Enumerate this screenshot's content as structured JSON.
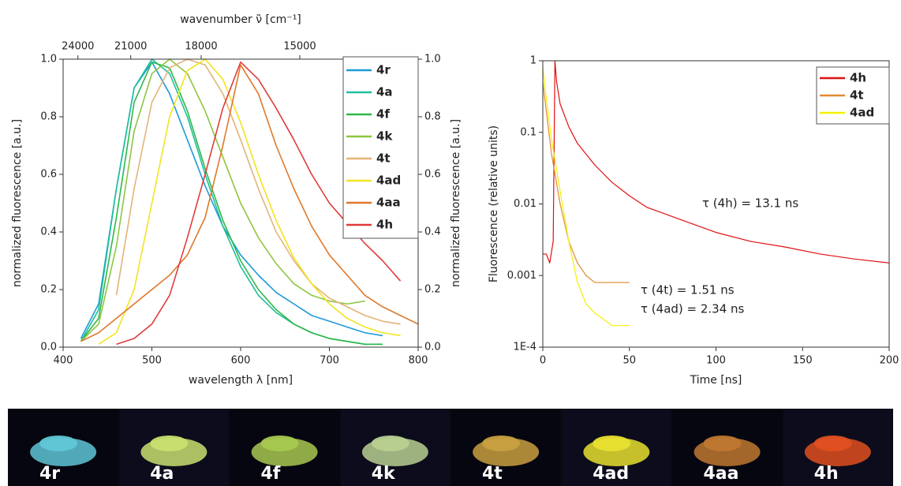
{
  "chart_data": [
    {
      "type": "line",
      "xlabel": "wavelength λ [nm]",
      "ylabel": "normalized fluorescence [a.u.]",
      "y2label": "normalized fluorescence [a.u.]",
      "x2label": "wavenumber ν̃ [cm⁻¹]",
      "xlim": [
        400,
        800
      ],
      "xticks": [
        400,
        500,
        600,
        700,
        800
      ],
      "ylim": [
        0,
        1
      ],
      "yticks": [
        {
          "value": 0,
          "label": "0.0"
        },
        {
          "value": 0.2,
          "label": "0.2"
        },
        {
          "value": 0.4,
          "label": "0.4"
        },
        {
          "value": 0.6,
          "label": "0.6"
        },
        {
          "value": 0.8,
          "label": "0.8"
        },
        {
          "value": 1,
          "label": "1.0"
        }
      ],
      "y2ticks": [
        {
          "value": 0,
          "label": "0.0"
        },
        {
          "value": 0.2,
          "label": "0.2"
        },
        {
          "value": 0.4,
          "label": "0.4"
        },
        {
          "value": 0.6,
          "label": "0.6"
        },
        {
          "value": 0.8,
          "label": "0.8"
        },
        {
          "value": 1,
          "label": "1.0"
        }
      ],
      "x2ticks": [
        24000,
        21000,
        18000,
        15000
      ],
      "legend": "upper right",
      "x": [
        400,
        420,
        440,
        460,
        480,
        500,
        520,
        540,
        560,
        580,
        600,
        620,
        640,
        660,
        680,
        700,
        720,
        740,
        760,
        780,
        800
      ],
      "series": [
        {
          "name": "4r",
          "color": "#1e9ad8",
          "values": [
            null,
            0.03,
            0.15,
            0.55,
            0.9,
            0.99,
            0.88,
            0.72,
            0.56,
            0.42,
            0.32,
            0.25,
            0.19,
            0.15,
            0.11,
            0.09,
            0.07,
            0.05,
            0.04,
            null,
            null
          ]
        },
        {
          "name": "4a",
          "color": "#1fbf9c",
          "values": [
            null,
            0.02,
            0.13,
            0.55,
            0.9,
            1.0,
            0.95,
            0.8,
            0.6,
            0.42,
            0.28,
            0.18,
            0.12,
            0.08,
            0.05,
            0.03,
            0.02,
            0.01,
            0.01,
            null,
            null
          ]
        },
        {
          "name": "4f",
          "color": "#2db84a",
          "values": [
            null,
            0.02,
            0.1,
            0.45,
            0.85,
            0.99,
            0.97,
            0.82,
            0.62,
            0.44,
            0.3,
            0.2,
            0.13,
            0.08,
            0.05,
            0.03,
            0.02,
            0.01,
            0.01,
            null,
            null
          ]
        },
        {
          "name": "4k",
          "color": "#8dc63f",
          "values": [
            null,
            0.02,
            0.08,
            0.35,
            0.75,
            0.95,
            1.0,
            0.95,
            0.82,
            0.66,
            0.5,
            0.38,
            0.29,
            0.22,
            0.18,
            0.16,
            0.15,
            0.16,
            null,
            null,
            null
          ]
        },
        {
          "name": "4t",
          "color": "#e2b477",
          "values": [
            null,
            null,
            null,
            0.18,
            0.55,
            0.85,
            0.97,
            1.0,
            0.98,
            0.88,
            0.72,
            0.55,
            0.4,
            0.3,
            0.22,
            0.17,
            0.14,
            0.11,
            0.09,
            0.08,
            null
          ]
        },
        {
          "name": "4ad",
          "color": "#f2e41e",
          "values": [
            null,
            null,
            0.01,
            0.05,
            0.2,
            0.5,
            0.8,
            0.96,
            1.0,
            0.93,
            0.78,
            0.6,
            0.44,
            0.31,
            0.22,
            0.15,
            0.1,
            0.07,
            0.05,
            0.04,
            null
          ]
        },
        {
          "name": "4aa",
          "color": "#e0782a",
          "values": [
            null,
            0.02,
            0.05,
            0.1,
            0.15,
            0.2,
            0.25,
            0.32,
            0.45,
            0.7,
            0.98,
            0.88,
            0.7,
            0.55,
            0.42,
            0.32,
            0.25,
            0.18,
            0.14,
            0.11,
            0.08
          ]
        },
        {
          "name": "4h",
          "color": "#e03c3c",
          "values": [
            null,
            null,
            null,
            0.01,
            0.03,
            0.08,
            0.18,
            0.38,
            0.6,
            0.83,
            0.99,
            0.93,
            0.83,
            0.72,
            0.6,
            0.5,
            0.43,
            0.36,
            0.3,
            0.23,
            null
          ]
        }
      ]
    },
    {
      "type": "line",
      "xlabel": "Time [ns]",
      "ylabel": "Fluorescence (relative units)",
      "log_y": true,
      "xlim": [
        0,
        200
      ],
      "xticks": [
        0,
        50,
        100,
        150,
        200
      ],
      "ylim": [
        0.0001,
        1
      ],
      "yticks": [
        {
          "value": 0.0001,
          "label": "1E-4"
        },
        0.001,
        0.01,
        0.1,
        1
      ],
      "legend": "upper right",
      "annotations": [
        "τ (4h) = 13.1 ns",
        "τ (4t) = 1.51 ns",
        "τ (4ad) = 2.34 ns"
      ],
      "series": [
        {
          "name": "4h",
          "color": "#e01010",
          "x": [
            0,
            2,
            4,
            6,
            7,
            8,
            10,
            15,
            20,
            30,
            40,
            50,
            60,
            80,
            100,
            120,
            140,
            160,
            180,
            200
          ],
          "values": [
            0.002,
            0.002,
            0.0015,
            0.003,
            1,
            0.5,
            0.25,
            0.12,
            0.07,
            0.035,
            0.02,
            0.013,
            0.009,
            0.006,
            0.004,
            0.003,
            0.0025,
            0.002,
            0.0017,
            0.0015
          ]
        },
        {
          "name": "4t",
          "color": "#e08a30",
          "x": [
            0,
            2,
            5,
            10,
            15,
            20,
            25,
            30,
            40,
            50
          ],
          "values": [
            0.5,
            0.2,
            0.05,
            0.01,
            0.003,
            0.0015,
            0.001,
            0.0008,
            0.0008,
            0.0008
          ]
        },
        {
          "name": "4ad",
          "color": "#f4f000",
          "x": [
            0,
            2,
            5,
            10,
            15,
            20,
            25,
            30,
            40,
            50
          ],
          "values": [
            0.8,
            0.3,
            0.08,
            0.015,
            0.003,
            0.0008,
            0.0004,
            0.0003,
            0.0002,
            0.0002
          ]
        }
      ]
    }
  ],
  "photo_strip": {
    "labels": [
      "4r",
      "4a",
      "4f",
      "4k",
      "4t",
      "4ad",
      "4aa",
      "4h"
    ]
  }
}
